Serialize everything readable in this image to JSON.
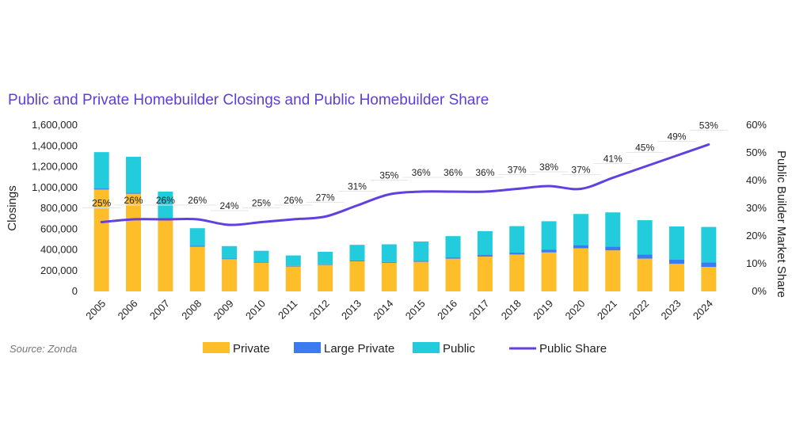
{
  "chart_data": {
    "type": "bar",
    "title": "Public and Private Homebuilder Closings and Public Homebuilder Share",
    "ylabel": "Closings",
    "y2label": "Public Builder Market Share",
    "ylim": [
      0,
      1600000
    ],
    "y2lim": [
      0,
      0.6
    ],
    "yticks": [
      "0",
      "200,000",
      "400,000",
      "600,000",
      "800,000",
      "1,000,000",
      "1,200,000",
      "1,400,000",
      "1,600,000"
    ],
    "y2ticks": [
      "0%",
      "10%",
      "20%",
      "30%",
      "40%",
      "50%",
      "60%"
    ],
    "categories": [
      "2005",
      "2006",
      "2007",
      "2008",
      "2009",
      "2010",
      "2011",
      "2012",
      "2013",
      "2014",
      "2015",
      "2016",
      "2017",
      "2018",
      "2019",
      "2020",
      "2021",
      "2022",
      "2023",
      "2024"
    ],
    "series": [
      {
        "name": "Private",
        "kind": "bar",
        "color": "#fdbe2a",
        "values": [
          980000,
          940000,
          690000,
          430000,
          310000,
          275000,
          240000,
          255000,
          290000,
          275000,
          285000,
          315000,
          335000,
          355000,
          375000,
          415000,
          395000,
          315000,
          265000,
          235000
        ]
      },
      {
        "name": "Large Private",
        "kind": "bar",
        "color": "#3b7bf0",
        "values": [
          10000,
          10000,
          10000,
          8000,
          6000,
          6000,
          6000,
          6000,
          8000,
          8000,
          10000,
          12000,
          15000,
          18000,
          25000,
          30000,
          35000,
          40000,
          40000,
          45000
        ]
      },
      {
        "name": "Public",
        "kind": "bar",
        "color": "#22ccdc",
        "values": [
          350000,
          345000,
          260000,
          170000,
          120000,
          110000,
          100000,
          120000,
          150000,
          170000,
          185000,
          205000,
          230000,
          255000,
          275000,
          300000,
          330000,
          330000,
          320000,
          340000
        ]
      },
      {
        "name": "Public Share",
        "kind": "line",
        "color": "#6041e0",
        "values": [
          0.25,
          0.26,
          0.26,
          0.26,
          0.24,
          0.25,
          0.26,
          0.27,
          0.31,
          0.35,
          0.36,
          0.36,
          0.36,
          0.37,
          0.38,
          0.37,
          0.41,
          0.45,
          0.49,
          0.53
        ],
        "labels": [
          "25%",
          "26%",
          "26%",
          "26%",
          "24%",
          "25%",
          "26%",
          "27%",
          "31%",
          "35%",
          "36%",
          "36%",
          "36%",
          "37%",
          "38%",
          "37%",
          "41%",
          "45%",
          "49%",
          "53%"
        ]
      }
    ],
    "legend": [
      "Private",
      "Large Private",
      "Public",
      "Public Share"
    ],
    "legend_position": "bottom",
    "source": "Source: Zonda"
  }
}
